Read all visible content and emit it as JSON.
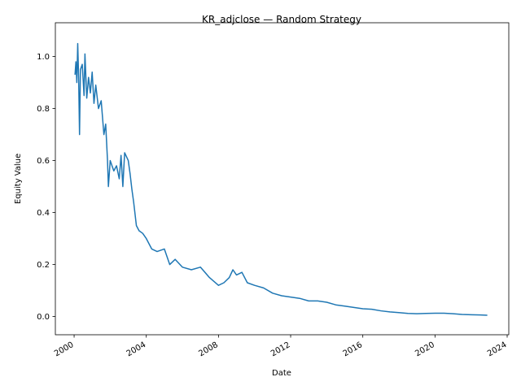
{
  "chart_data": {
    "type": "line",
    "title": "KR_adjclose — Random Strategy",
    "x_label": "Date",
    "y_label": "Equity Value",
    "x": [
      2000.05,
      2000.1,
      2000.15,
      2000.2,
      2000.25,
      2000.3,
      2000.35,
      2000.45,
      2000.55,
      2000.6,
      2000.7,
      2000.8,
      2000.9,
      2001.0,
      2001.1,
      2001.2,
      2001.35,
      2001.5,
      2001.65,
      2001.75,
      2001.85,
      2001.9,
      2002.0,
      2002.2,
      2002.35,
      2002.5,
      2002.6,
      2002.7,
      2002.8,
      2003.0,
      2003.1,
      2003.2,
      2003.3,
      2003.45,
      2003.6,
      2003.8,
      2004.0,
      2004.3,
      2004.6,
      2005.0,
      2005.3,
      2005.6,
      2006.0,
      2006.5,
      2007.0,
      2007.5,
      2008.0,
      2008.3,
      2008.6,
      2008.8,
      2009.0,
      2009.3,
      2009.6,
      2010.0,
      2010.5,
      2011.0,
      2011.5,
      2012.0,
      2012.5,
      2013.0,
      2013.5,
      2014.0,
      2014.5,
      2015.0,
      2015.5,
      2016.0,
      2016.5,
      2017.0,
      2017.5,
      2018.0,
      2018.5,
      2019.0,
      2019.5,
      2020.0,
      2020.5,
      2021.0,
      2021.5,
      2022.0,
      2022.5,
      2022.9
    ],
    "values": [
      0.93,
      0.98,
      0.9,
      1.05,
      0.92,
      0.7,
      0.95,
      0.97,
      0.85,
      1.01,
      0.84,
      0.92,
      0.86,
      0.94,
      0.82,
      0.89,
      0.8,
      0.83,
      0.7,
      0.74,
      0.6,
      0.5,
      0.6,
      0.56,
      0.58,
      0.53,
      0.62,
      0.5,
      0.63,
      0.6,
      0.55,
      0.49,
      0.44,
      0.35,
      0.33,
      0.32,
      0.3,
      0.26,
      0.25,
      0.26,
      0.2,
      0.22,
      0.19,
      0.18,
      0.19,
      0.15,
      0.12,
      0.13,
      0.15,
      0.18,
      0.16,
      0.17,
      0.13,
      0.12,
      0.11,
      0.09,
      0.08,
      0.075,
      0.07,
      0.06,
      0.06,
      0.055,
      0.045,
      0.04,
      0.035,
      0.03,
      0.028,
      0.022,
      0.018,
      0.015,
      0.012,
      0.011,
      0.012,
      0.013,
      0.013,
      0.011,
      0.008,
      0.007,
      0.006,
      0.005
    ],
    "color": "#1f77b4",
    "xlim": [
      1998.96,
      2024.09
    ],
    "xticks": [
      2000,
      2004,
      2008,
      2012,
      2016,
      2020,
      2024
    ],
    "ylim": [
      -0.07,
      1.13
    ],
    "yticks": [
      {
        "value": 0,
        "label": "0.0"
      },
      0.2,
      0.4,
      0.6,
      0.8,
      {
        "value": 1,
        "label": "1.0"
      }
    ]
  }
}
